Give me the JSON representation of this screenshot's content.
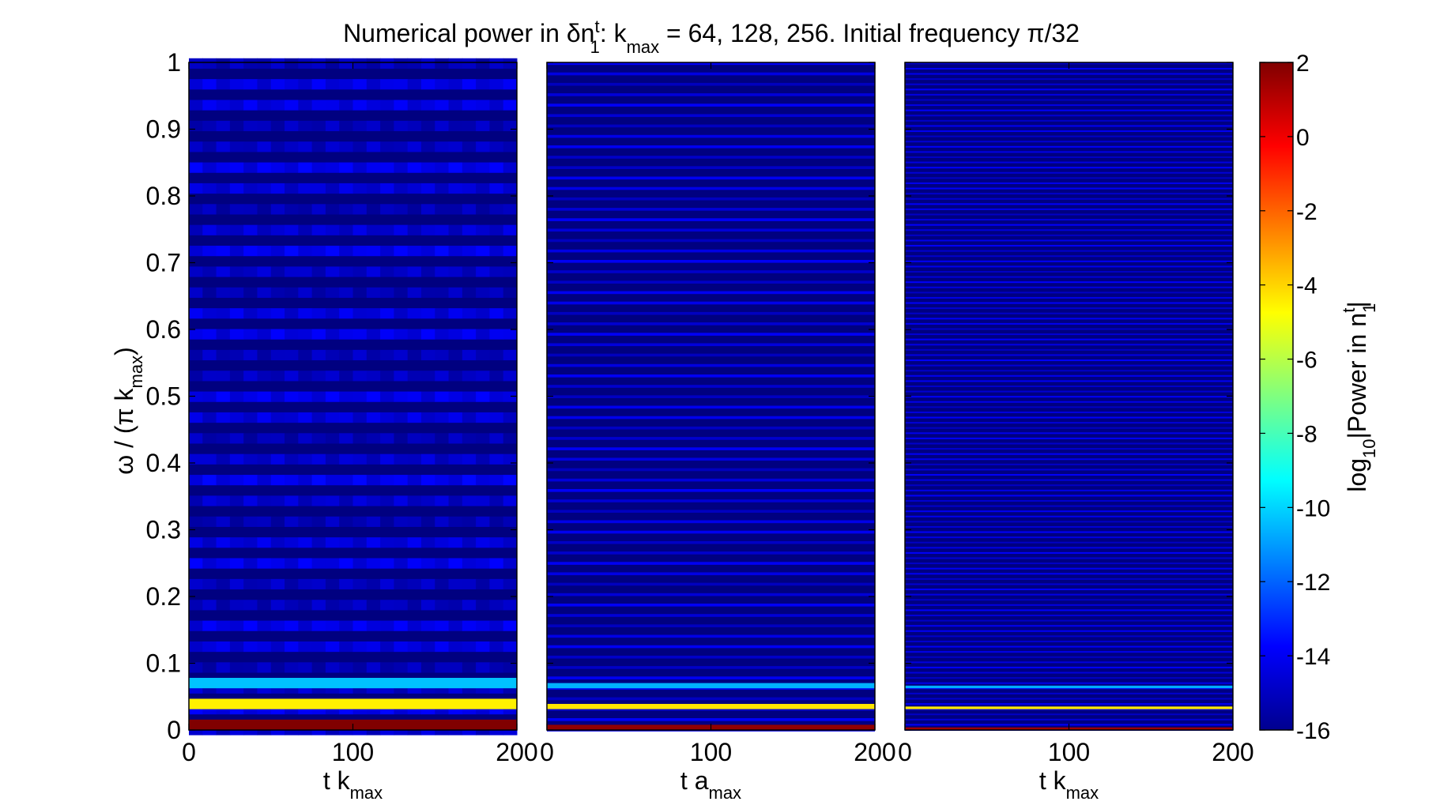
{
  "chart_data": {
    "type": "heatmap",
    "title": {
      "prefix": "Numerical power in δn",
      "sup": "t",
      "sub": "1",
      "mid": ": k",
      "mid_sub": "max",
      "suffix": " = 64, 128, 256. Initial frequency π/32"
    },
    "ylabel": {
      "main": "ω / (π k",
      "sub": "max",
      "end": ")"
    },
    "ylim": [
      0,
      1
    ],
    "yticks": [
      "0",
      "0.1",
      "0.2",
      "0.3",
      "0.4",
      "0.5",
      "0.6",
      "0.7",
      "0.8",
      "0.9",
      "1"
    ],
    "xlim": [
      0,
      200
    ],
    "xticks": [
      "0",
      "100",
      "200"
    ],
    "panels": [
      {
        "k_max": 64,
        "xlabel": {
          "main": "t k",
          "sub": "max"
        },
        "line_width": 0.0156,
        "lines": [
          {
            "omega": 0.0078,
            "log10_power": 2
          },
          {
            "omega": 0.039,
            "log10_power": -4.5
          },
          {
            "omega": 0.0703,
            "log10_power": -10.3
          }
        ],
        "background_band_log10_power": -14.6,
        "background_log10_power": -16
      },
      {
        "k_max": 128,
        "xlabel": {
          "main": "t a",
          "sub": "max"
        },
        "line_width": 0.0078,
        "lines": [
          {
            "omega": 0.0039,
            "log10_power": 1.7
          },
          {
            "omega": 0.0352,
            "log10_power": -4.3
          },
          {
            "omega": 0.0664,
            "log10_power": -10.6
          }
        ],
        "background_band_log10_power": -14.4,
        "background_log10_power": -16
      },
      {
        "k_max": 256,
        "xlabel": {
          "main": "t k",
          "sub": "max"
        },
        "line_width": 0.0039,
        "lines": [
          {
            "omega": 0.002,
            "log10_power": 1.5
          },
          {
            "omega": 0.0332,
            "log10_power": -4.4
          },
          {
            "omega": 0.0645,
            "log10_power": -10.7
          }
        ],
        "background_band_log10_power": -14.3,
        "background_log10_power": -16
      }
    ],
    "colorbar": {
      "colormap": "jet",
      "clim": [
        -16,
        2
      ],
      "ticks": [
        "2",
        "0",
        "-2",
        "-4",
        "-6",
        "-8",
        "-10",
        "-12",
        "-14",
        "-16"
      ],
      "label": {
        "main": "log",
        "sub1": "10",
        "mid": "|Power in n",
        "sub2": "1",
        "sup": "t",
        "end": "|"
      }
    }
  }
}
